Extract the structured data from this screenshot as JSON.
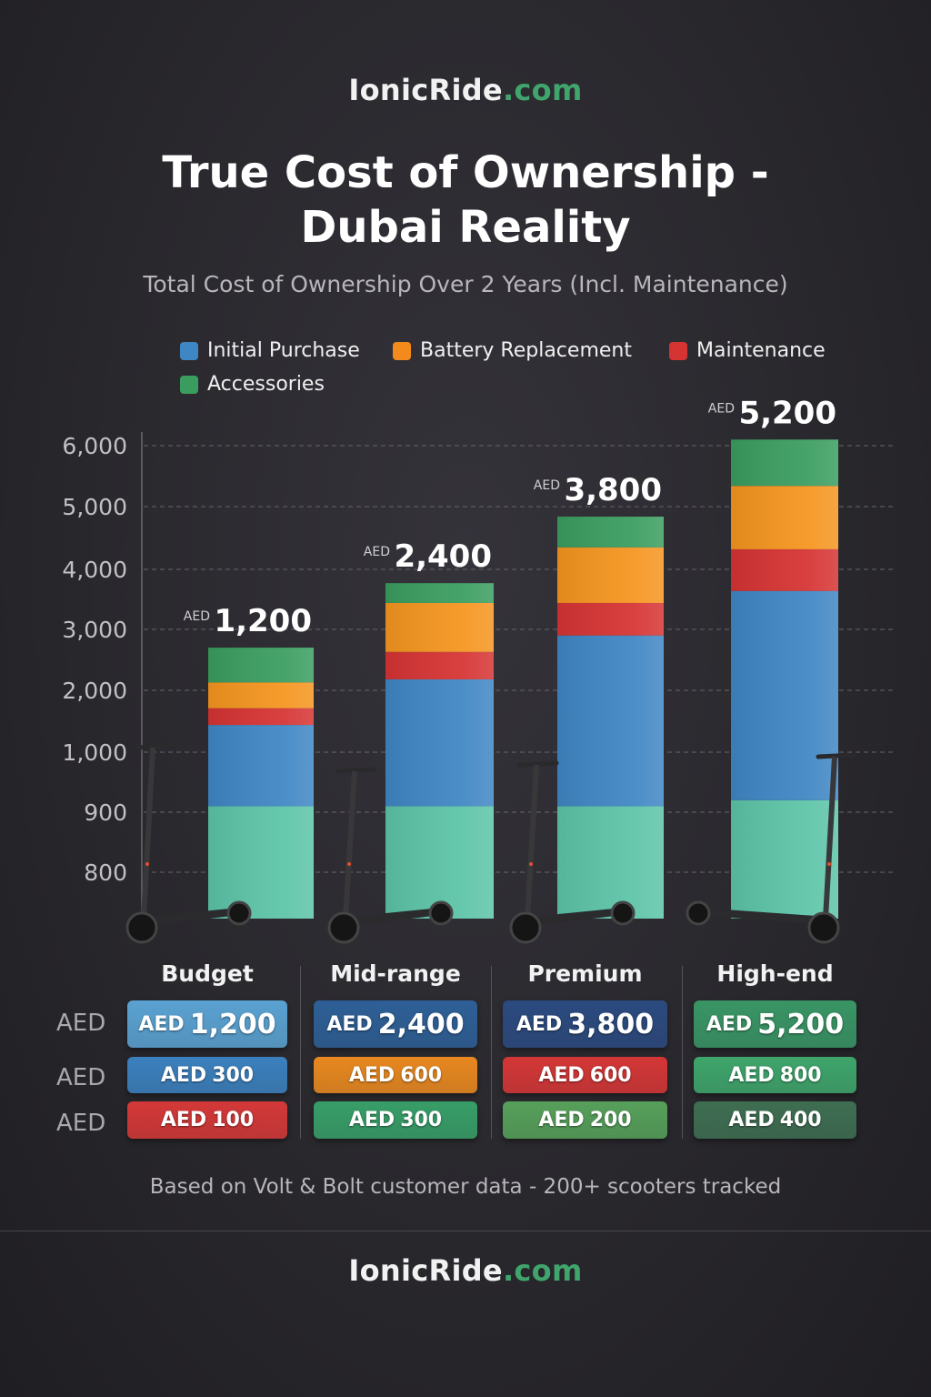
{
  "brand": {
    "name": "IonicRide",
    ".com": ".com",
    "domain": ".com"
  },
  "title_line1": "True Cost of Ownership -",
  "title_line2": "Dubai Reality",
  "subtitle": "Total Cost of Ownership Over 2 Years (Incl. Maintenance)",
  "legend": [
    {
      "label": "Initial Purchase",
      "color": "#3f86c4"
    },
    {
      "label": "Battery Replacement",
      "color": "#f28a1c"
    },
    {
      "label": "Maintenance",
      "color": "#d63333"
    },
    {
      "label": "Accessories",
      "color": "#3a9d5f"
    }
  ],
  "chart_data": {
    "type": "bar",
    "stacked": true,
    "title": "True Cost of Ownership - Dubai Reality",
    "subtitle": "Total Cost of Ownership Over 2 Years (Incl. Maintenance)",
    "categories": [
      "Budget",
      "Mid-range",
      "Premium",
      "High-end"
    ],
    "y_ticks": [
      "6,000",
      "5,000",
      "4,000",
      "3,000",
      "2,000",
      "1,000",
      "900",
      "800"
    ],
    "y_tick_values": [
      6000,
      5000,
      4000,
      3000,
      2000,
      1000,
      900,
      800
    ],
    "y_scale": "non-linear (as printed)",
    "grid": true,
    "legend_placement": "top",
    "series": [
      {
        "color": "#5cc4a8",
        "values": [
          910,
          910,
          910,
          920
        ]
      },
      {
        "name": "Initial Purchase",
        "color": "#3f86c4",
        "values": [
          530,
          1270,
          1990,
          2720
        ]
      },
      {
        "name": "Maintenance",
        "color": "#d63333",
        "values": [
          270,
          450,
          540,
          680
        ]
      },
      {
        "name": "Battery Replacement",
        "color": "#f5951f",
        "values": [
          420,
          810,
          910,
          1020
        ]
      },
      {
        "name": "Accessories",
        "color": "#3a9d5f",
        "values": [
          570,
          330,
          490,
          760
        ]
      }
    ],
    "bar_labels": [
      {
        "currency": "AED",
        "value": "1,200"
      },
      {
        "currency": "AED",
        "value": "2,400"
      },
      {
        "currency": "AED",
        "value": "3,800"
      },
      {
        "currency": "AED",
        "value": "5,200"
      }
    ]
  },
  "table": {
    "row_labels": [
      "AED",
      "AED",
      "AED"
    ],
    "columns": [
      {
        "header": "Budget",
        "cells": [
          {
            "cur": "AED",
            "val": "1,200",
            "color": "#5aa2d2"
          },
          {
            "cur": "AED",
            "val": "300",
            "color": "#3b80be"
          },
          {
            "cur": "AED",
            "val": "100",
            "color": "#d43838"
          }
        ]
      },
      {
        "header": "Mid-range",
        "cells": [
          {
            "cur": "AED",
            "val": "2,400",
            "color": "#2d5f96"
          },
          {
            "cur": "AED",
            "val": "600",
            "color": "#e8881f"
          },
          {
            "cur": "AED",
            "val": "300",
            "color": "#379e68"
          }
        ]
      },
      {
        "header": "Premium",
        "cells": [
          {
            "cur": "AED",
            "val": "3,800",
            "color": "#2b4a7f"
          },
          {
            "cur": "AED",
            "val": "600",
            "color": "#d43636"
          },
          {
            "cur": "AED",
            "val": "200",
            "color": "#56a05a"
          }
        ]
      },
      {
        "header": "High-end",
        "cells": [
          {
            "cur": "AED",
            "val": "5,200",
            "color": "#399565"
          },
          {
            "cur": "AED",
            "val": "800",
            "color": "#3ea56b"
          },
          {
            "cur": "AED",
            "val": "400",
            "color": "#3e6e52"
          }
        ]
      }
    ]
  },
  "note": "Based on Volt & Bolt customer data - 200+ scooters tracked"
}
